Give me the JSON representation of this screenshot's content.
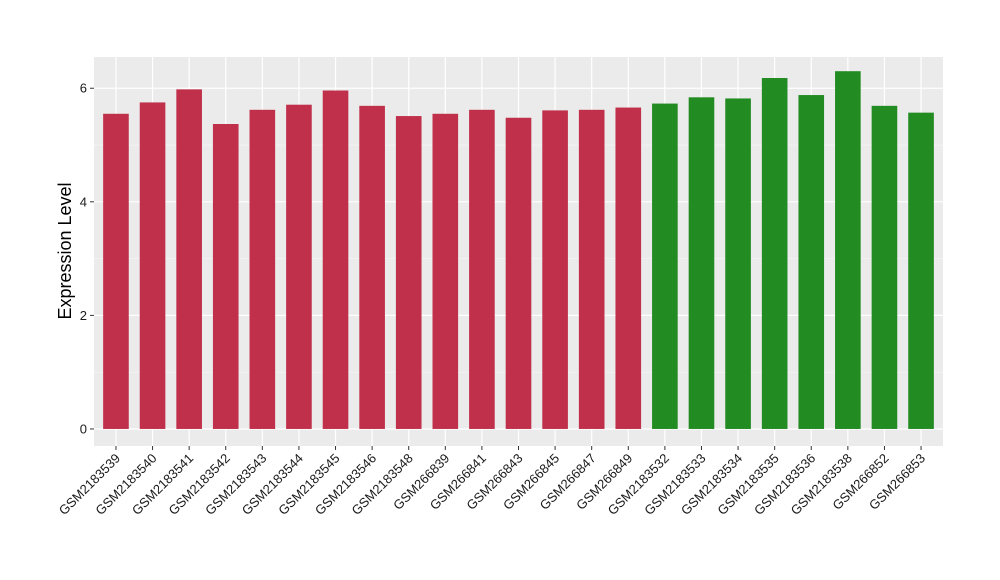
{
  "chart_data": {
    "type": "bar",
    "title": "",
    "xlabel": "",
    "ylabel": "Expression Level",
    "ylim": [
      -0.3,
      6.55
    ],
    "yticks": [
      0,
      2,
      4,
      6
    ],
    "grid": true,
    "panel_background": "#ebebeb",
    "categories": [
      "GSM2183539",
      "GSM2183540",
      "GSM2183541",
      "GSM2183542",
      "GSM2183543",
      "GSM2183544",
      "GSM2183545",
      "GSM2183546",
      "GSM2183548",
      "GSM266839",
      "GSM266841",
      "GSM266843",
      "GSM266845",
      "GSM266847",
      "GSM266849",
      "GSM2183532",
      "GSM2183533",
      "GSM2183534",
      "GSM2183535",
      "GSM2183536",
      "GSM2183538",
      "GSM266852",
      "GSM266853"
    ],
    "values": [
      5.55,
      5.75,
      5.98,
      5.37,
      5.62,
      5.71,
      5.96,
      5.69,
      5.51,
      5.55,
      5.62,
      5.48,
      5.61,
      5.62,
      5.66,
      5.73,
      5.84,
      5.82,
      6.18,
      5.88,
      6.3,
      5.69,
      5.57
    ],
    "groups": [
      "a",
      "a",
      "a",
      "a",
      "a",
      "a",
      "a",
      "a",
      "a",
      "a",
      "a",
      "a",
      "a",
      "a",
      "a",
      "b",
      "b",
      "b",
      "b",
      "b",
      "b",
      "b",
      "b"
    ],
    "colors": {
      "a": "#c0304b",
      "b": "#228b22"
    }
  }
}
